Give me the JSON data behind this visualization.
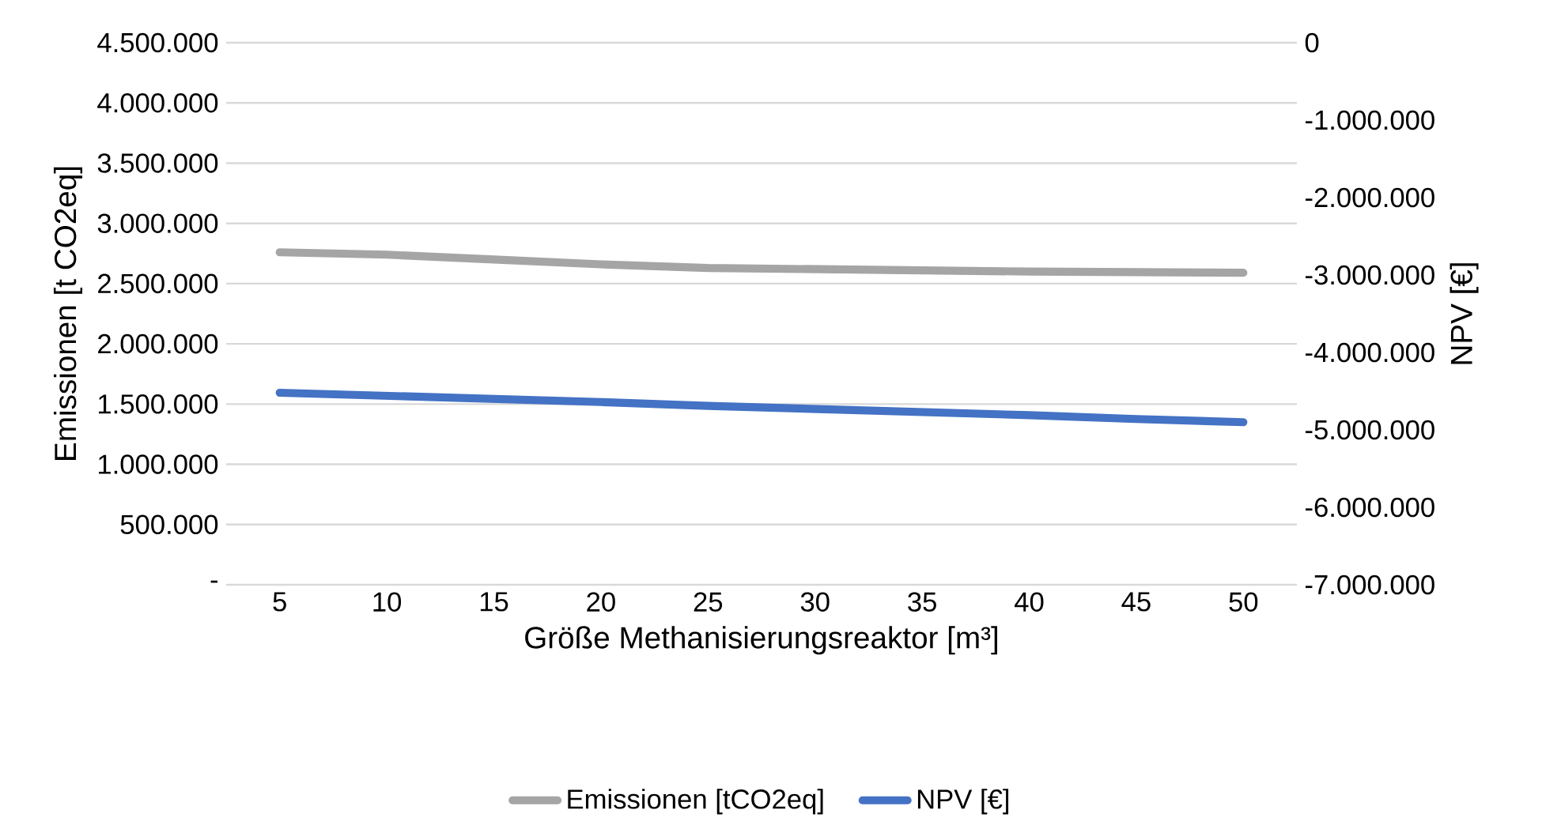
{
  "chart_data": {
    "type": "line",
    "xlabel": "Größe Methanisierungsreaktor [m³]",
    "ylabel": "Emissionen [t CO2eq]",
    "y2label": "NPV [€]",
    "categories": [
      "5",
      "10",
      "15",
      "20",
      "25",
      "30",
      "35",
      "40",
      "45",
      "50"
    ],
    "series": [
      {
        "name": "Emissionen [tCO2eq]",
        "color": "#a5a5a5",
        "values": [
          2760000,
          2740000,
          2700000,
          2660000,
          2630000,
          2620000,
          2610000,
          2600000,
          2595000,
          2590000
        ]
      },
      {
        "name": "NPV [€]",
        "color": "#4472c4",
        "axis": "y2",
        "values": [
          -4520000,
          -4560000,
          -4600000,
          -4640000,
          -4690000,
          -4730000,
          -4770000,
          -4810000,
          -4860000,
          -4900000
        ]
      }
    ],
    "ylim": [
      0,
      4500000
    ],
    "yticks": [
      {
        "value": 0,
        "label": "-"
      },
      {
        "value": 500000,
        "label": "500.000"
      },
      {
        "value": 1000000,
        "label": "1.000.000"
      },
      {
        "value": 1500000,
        "label": "1.500.000"
      },
      {
        "value": 2000000,
        "label": "2.000.000"
      },
      {
        "value": 2500000,
        "label": "2.500.000"
      },
      {
        "value": 3000000,
        "label": "3.000.000"
      },
      {
        "value": 3500000,
        "label": "3.500.000"
      },
      {
        "value": 4000000,
        "label": "4.000.000"
      },
      {
        "value": 4500000,
        "label": "4.500.000"
      }
    ],
    "y2lim": [
      -7000000,
      0
    ],
    "y2ticks": [
      {
        "value": -7000000,
        "label": "-7.000.000"
      },
      {
        "value": -6000000,
        "label": "-6.000.000"
      },
      {
        "value": -5000000,
        "label": "-5.000.000"
      },
      {
        "value": -4000000,
        "label": "-4.000.000"
      },
      {
        "value": -3000000,
        "label": "-3.000.000"
      },
      {
        "value": -2000000,
        "label": "-2.000.000"
      },
      {
        "value": -1000000,
        "label": "-1.000.000"
      },
      0
    ],
    "grid": "y",
    "legend": "bottom",
    "line_style": "solid"
  }
}
